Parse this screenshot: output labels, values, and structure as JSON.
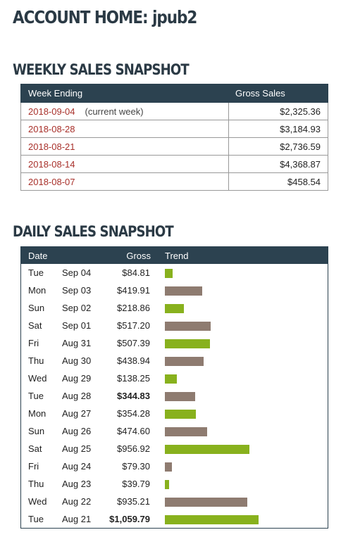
{
  "page": {
    "title": "ACCOUNT HOME: jpub2"
  },
  "weekly": {
    "title": "WEEKLY SALES SNAPSHOT",
    "headers": {
      "week": "Week Ending",
      "gross": "Gross Sales"
    },
    "rows": [
      {
        "date": "2018-09-04",
        "note": "(current week)",
        "gross": "$2,325.36"
      },
      {
        "date": "2018-08-28",
        "note": "",
        "gross": "$3,184.93"
      },
      {
        "date": "2018-08-21",
        "note": "",
        "gross": "$2,736.59"
      },
      {
        "date": "2018-08-14",
        "note": "",
        "gross": "$4,368.87"
      },
      {
        "date": "2018-08-07",
        "note": "",
        "gross": "$458.54"
      }
    ]
  },
  "daily": {
    "title": "DAILY SALES SNAPSHOT",
    "headers": {
      "date": "Date",
      "gross": "Gross",
      "trend": "Trend"
    },
    "colors": {
      "up": "#88b11d",
      "down": "#8e7b70"
    },
    "rows": [
      {
        "day": "Tue",
        "md": "Sep 04",
        "gross": "$84.81",
        "value": 84.81,
        "bold": false,
        "trend": "up"
      },
      {
        "day": "Mon",
        "md": "Sep 03",
        "gross": "$419.91",
        "value": 419.91,
        "bold": false,
        "trend": "down"
      },
      {
        "day": "Sun",
        "md": "Sep 02",
        "gross": "$218.86",
        "value": 218.86,
        "bold": false,
        "trend": "up"
      },
      {
        "day": "Sat",
        "md": "Sep 01",
        "gross": "$517.20",
        "value": 517.2,
        "bold": false,
        "trend": "down"
      },
      {
        "day": "Fri",
        "md": "Aug 31",
        "gross": "$507.39",
        "value": 507.39,
        "bold": false,
        "trend": "up"
      },
      {
        "day": "Thu",
        "md": "Aug 30",
        "gross": "$438.94",
        "value": 438.94,
        "bold": false,
        "trend": "down"
      },
      {
        "day": "Wed",
        "md": "Aug 29",
        "gross": "$138.25",
        "value": 138.25,
        "bold": false,
        "trend": "up"
      },
      {
        "day": "Tue",
        "md": "Aug 28",
        "gross": "$344.83",
        "value": 344.83,
        "bold": true,
        "trend": "down"
      },
      {
        "day": "Mon",
        "md": "Aug 27",
        "gross": "$354.28",
        "value": 354.28,
        "bold": false,
        "trend": "up"
      },
      {
        "day": "Sun",
        "md": "Aug 26",
        "gross": "$474.60",
        "value": 474.6,
        "bold": false,
        "trend": "down"
      },
      {
        "day": "Sat",
        "md": "Aug 25",
        "gross": "$956.92",
        "value": 956.92,
        "bold": false,
        "trend": "up"
      },
      {
        "day": "Fri",
        "md": "Aug 24",
        "gross": "$79.30",
        "value": 79.3,
        "bold": false,
        "trend": "down"
      },
      {
        "day": "Thu",
        "md": "Aug 23",
        "gross": "$39.79",
        "value": 39.79,
        "bold": false,
        "trend": "up"
      },
      {
        "day": "Wed",
        "md": "Aug 22",
        "gross": "$935.21",
        "value": 935.21,
        "bold": false,
        "trend": "down"
      },
      {
        "day": "Tue",
        "md": "Aug 21",
        "gross": "$1,059.79",
        "value": 1059.79,
        "bold": true,
        "trend": "up"
      }
    ]
  }
}
